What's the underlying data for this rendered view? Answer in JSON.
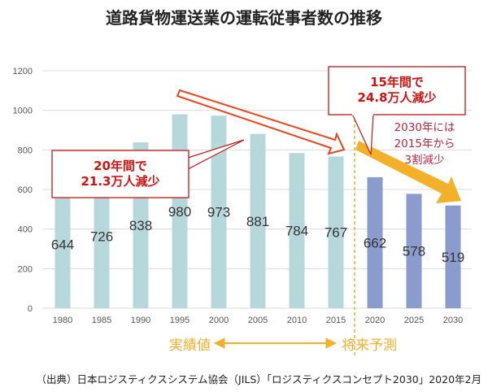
{
  "chart_data": {
    "type": "bar",
    "title": "道路貨物運送業の運転従事者数の推移",
    "categories": [
      "1980",
      "1985",
      "1990",
      "1995",
      "2000",
      "2005",
      "2010",
      "2015",
      "2020",
      "2025",
      "2030"
    ],
    "values": [
      644,
      726,
      838,
      980,
      973,
      881,
      784,
      767,
      662,
      578,
      519
    ],
    "series_kind": [
      "actual",
      "actual",
      "actual",
      "actual",
      "actual",
      "actual",
      "actual",
      "actual",
      "forecast",
      "forecast",
      "forecast"
    ],
    "colors": {
      "actual": "#b7d8da",
      "forecast": "#8a9ccc",
      "accent": "#f3b12a",
      "callout": "#d01414"
    },
    "ylim": [
      0,
      1200
    ],
    "yticks": [
      0,
      200,
      400,
      600,
      800,
      1000,
      1200
    ],
    "grid": true,
    "xlabel": "",
    "ylabel": "",
    "annotations": {
      "callout_left": [
        "20年間で",
        "21.3万人減少"
      ],
      "callout_right": [
        "15年間で",
        "24.8万人減少"
      ],
      "note": [
        "2030年には",
        "2015年から",
        "3割減少"
      ],
      "actual_label": "実績値",
      "forecast_label": "将来予測"
    }
  },
  "source": "（出典）日本ロジスティクスシステム協会（JILS）「ロジスティクスコンセプト2030」2020年2月"
}
